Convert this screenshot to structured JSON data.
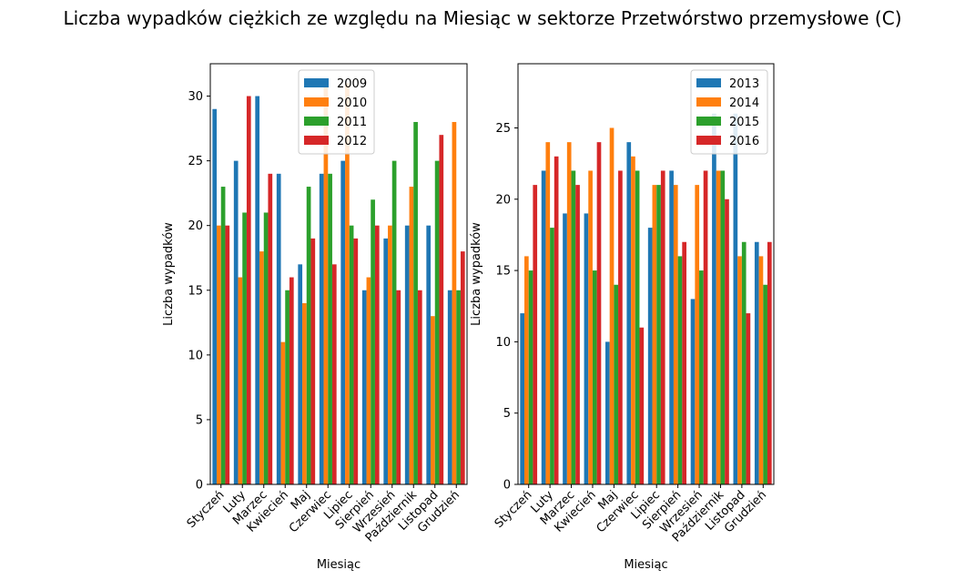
{
  "title": "Liczba wypadków ciężkich ze względu na Miesiąc w sektorze Przetwórstwo przemysłowe (C)",
  "chart_data": [
    {
      "type": "bar",
      "xlabel": "Miesiąc",
      "ylabel": "Liczba wypadków",
      "ylim": [
        0,
        32.5
      ],
      "yticks": [
        0,
        5,
        10,
        15,
        20,
        25,
        30
      ],
      "legend_position": "top-center",
      "categories": [
        "Styczeń",
        "Luty",
        "Marzec",
        "Kwiecień",
        "Maj",
        "Czerwiec",
        "Lipiec",
        "Sierpień",
        "Wrzesień",
        "Październik",
        "Listopad",
        "Grudzień"
      ],
      "series": [
        {
          "name": "2009",
          "color": "#1f77b4",
          "values": [
            29,
            25,
            30,
            24,
            17,
            24,
            25,
            15,
            19,
            20,
            20,
            15
          ]
        },
        {
          "name": "2010",
          "color": "#ff7f0e",
          "values": [
            20,
            16,
            18,
            11,
            14,
            31,
            31,
            16,
            20,
            23,
            13,
            28
          ]
        },
        {
          "name": "2011",
          "color": "#2ca02c",
          "values": [
            23,
            21,
            21,
            15,
            23,
            24,
            20,
            22,
            25,
            28,
            25,
            15
          ]
        },
        {
          "name": "2012",
          "color": "#d62728",
          "values": [
            20,
            30,
            24,
            16,
            19,
            17,
            19,
            20,
            15,
            15,
            27,
            18
          ]
        }
      ]
    },
    {
      "type": "bar",
      "xlabel": "Miesiąc",
      "ylabel": "Liczba wypadków",
      "ylim": [
        0,
        29.5
      ],
      "yticks": [
        0,
        5,
        10,
        15,
        20,
        25
      ],
      "legend_position": "top-right",
      "categories": [
        "Styczeń",
        "Luty",
        "Marzec",
        "Kwiecień",
        "Maj",
        "Czerwiec",
        "Lipiec",
        "Sierpień",
        "Wrzesień",
        "Październik",
        "Listopad",
        "Grudzień"
      ],
      "series": [
        {
          "name": "2013",
          "color": "#1f77b4",
          "values": [
            12,
            22,
            19,
            19,
            10,
            24,
            18,
            22,
            13,
            26,
            26,
            17
          ]
        },
        {
          "name": "2014",
          "color": "#ff7f0e",
          "values": [
            16,
            24,
            24,
            22,
            25,
            23,
            21,
            21,
            21,
            22,
            16,
            16
          ]
        },
        {
          "name": "2015",
          "color": "#2ca02c",
          "values": [
            15,
            18,
            22,
            15,
            14,
            22,
            21,
            16,
            15,
            22,
            17,
            14
          ]
        },
        {
          "name": "2016",
          "color": "#d62728",
          "values": [
            21,
            23,
            21,
            24,
            22,
            11,
            22,
            17,
            22,
            20,
            12,
            17
          ]
        }
      ]
    }
  ]
}
